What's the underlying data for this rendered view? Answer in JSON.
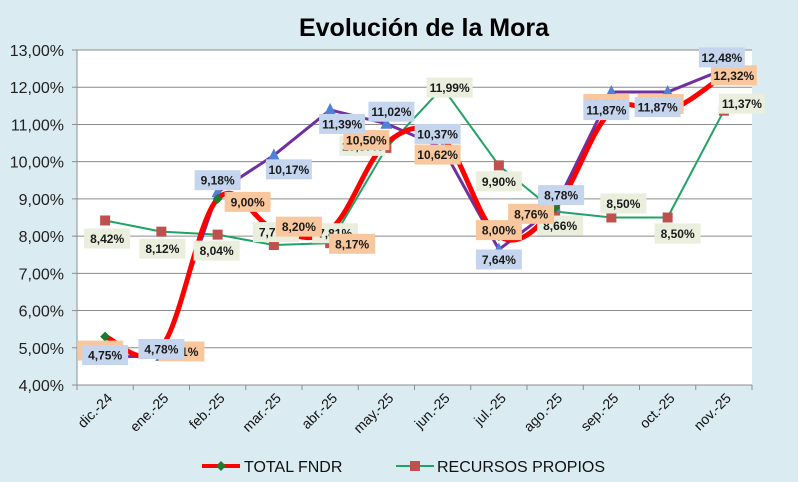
{
  "chart_data": {
    "type": "line",
    "title": "Evolución de la Mora",
    "xlabel": "",
    "ylabel": "",
    "ylim": [
      4,
      13
    ],
    "yticks": [
      "4,00%",
      "5,00%",
      "6,00%",
      "7,00%",
      "8,00%",
      "9,00%",
      "10,00%",
      "11,00%",
      "12,00%",
      "13,00%"
    ],
    "grid": true,
    "legend_position": "bottom",
    "categories": [
      "dic.-24",
      "ene.-25",
      "feb.-25",
      "mar.-25",
      "abr.-25",
      "may.-25",
      "jun.-25",
      "jul.-25",
      "ago.-25",
      "sep.-25",
      "oct.-25",
      "nov.-25"
    ],
    "series": [
      {
        "name": "",
        "in_legend": false,
        "line_color": "#7030a0",
        "marker": "triangle",
        "marker_color": "#4f81d6",
        "label_bg": "#c5d5ee",
        "values": [
          4.75,
          4.78,
          9.18,
          10.17,
          11.39,
          11.02,
          10.37,
          7.64,
          8.78,
          11.87,
          11.87,
          12.48
        ],
        "labels": [
          "4,75%",
          "4,78%",
          "9,18%",
          "10,17%",
          "11,39%",
          "11,02%",
          "10,37%",
          "7,64%",
          "8,78%",
          "11,87%",
          "11,87%",
          "12,48%"
        ]
      },
      {
        "name": "TOTAL FNDR",
        "in_legend": true,
        "line_color": "#ff0000",
        "marker": "diamond",
        "marker_color": "#1e7a2e",
        "label_bg": "#f8c79d",
        "values": [
          5.3,
          5.01,
          9.0,
          8.2,
          8.17,
          10.5,
          10.62,
          8.0,
          8.76,
          11.36,
          11.36,
          12.32
        ],
        "labels": [
          "5,30%",
          "5,01%",
          "9,00%",
          "8,20%",
          "8,17%",
          "10,50%",
          "10,62%",
          "8,00%",
          "8,76%",
          "11,36%",
          "11,36%",
          "12,32%"
        ]
      },
      {
        "name": "RECURSOS PROPIOS",
        "in_legend": true,
        "line_color": "#21a366",
        "marker": "square",
        "marker_color": "#c0504d",
        "label_bg": "#eaeedd",
        "values": [
          8.42,
          8.12,
          8.04,
          7.76,
          7.81,
          10.37,
          11.99,
          9.9,
          8.66,
          8.5,
          8.5,
          11.37
        ],
        "labels": [
          "8,42%",
          "8,12%",
          "8,04%",
          "7,76%",
          "7,81%",
          "10,37%",
          "11,99%",
          "9,90%",
          "8,66%",
          "8,50%",
          "8,50%",
          "11,37%"
        ]
      }
    ]
  },
  "legend": {
    "items": [
      {
        "label": "TOTAL FNDR"
      },
      {
        "label": "RECURSOS PROPIOS"
      }
    ]
  }
}
